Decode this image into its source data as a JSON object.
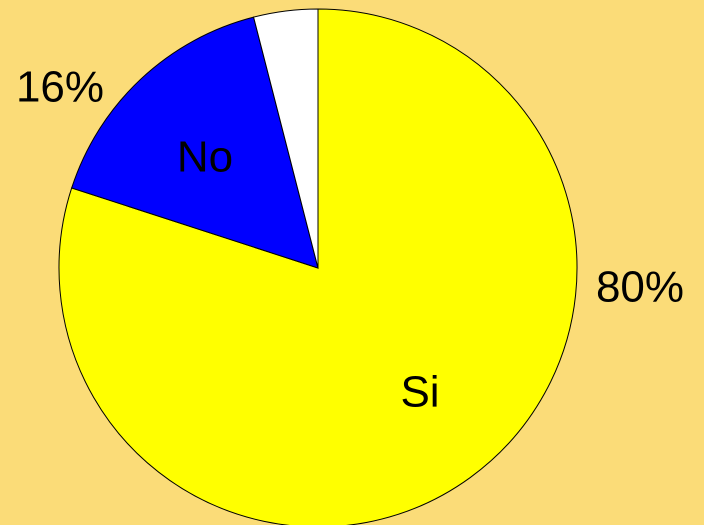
{
  "chart_data": {
    "type": "pie",
    "categories": [
      "Si",
      "No",
      null
    ],
    "values": [
      80,
      16,
      4
    ],
    "value_labels": [
      "80%",
      "16%",
      null
    ],
    "colors": [
      "#ffff00",
      "#0000ff",
      "#ffffff"
    ]
  }
}
